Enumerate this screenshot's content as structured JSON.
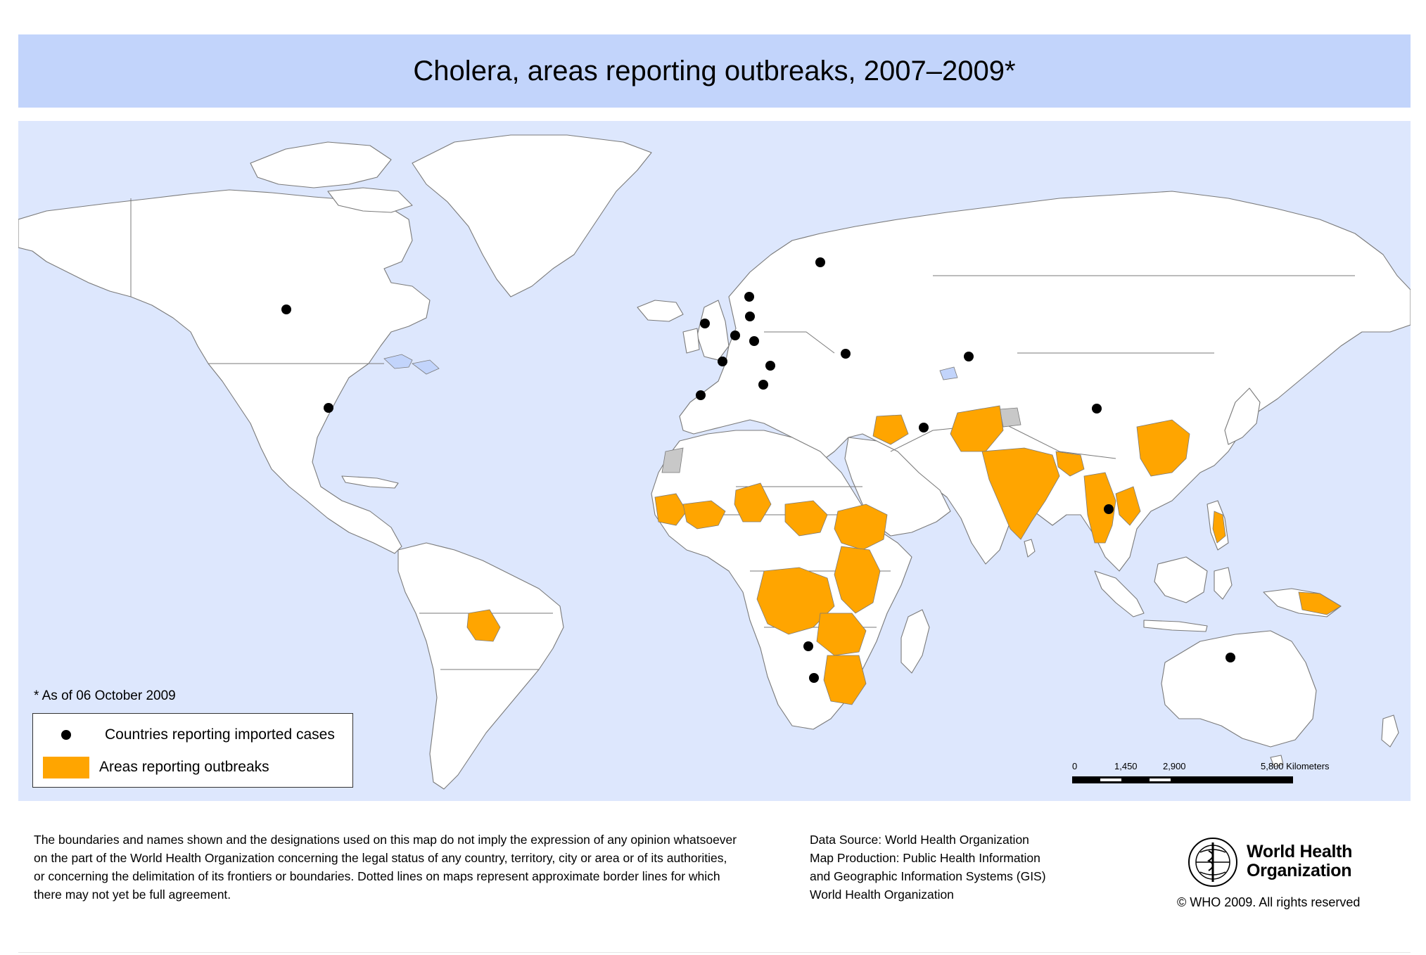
{
  "title": "Cholera, areas reporting outbreaks, 2007–2009*",
  "note": "* As of 06 October 2009",
  "legend": {
    "imported_label": "Countries reporting imported cases",
    "outbreak_label": "Areas reporting outbreaks"
  },
  "colors": {
    "background": "#ffffff",
    "title_bar": "#c2d4fb",
    "ocean": "#dde7fd",
    "land": "#ffffff",
    "border": "#7a7a7a",
    "outbreak": "#ffa500",
    "no_data": "#c8c8c8",
    "lakes": "#c2d4fb",
    "imported_dot": "#000000"
  },
  "scale": {
    "ticks": [
      "0",
      "1,450",
      "2,900",
      "5,800 Kilometers"
    ]
  },
  "disclaimer_lines": [
    "The boundaries and names shown and the designations used on this map do not imply the expression of any opinion whatsoever",
    "on the part of the World Health Organization concerning the legal status of any country, territory, city or area or of its authorities,",
    "or concerning the delimitation of its frontiers or boundaries.  Dotted lines on maps represent approximate border lines for which",
    "there may not yet be full agreement."
  ],
  "source_lines": [
    "Data Source: World Health Organization",
    "Map Production: Public Health Information",
    "and Geographic Information Systems (GIS)",
    "World Health Organization"
  ],
  "who": {
    "line1": "World Health",
    "line2": "Organization",
    "copyright": "© WHO 2009. All rights reserved",
    "logo_icon": "who-emblem-icon"
  },
  "map_data": {
    "imported_case_markers": 19,
    "outbreak_regions": [
      "Iraq",
      "Afghanistan",
      "Pakistan",
      "India",
      "Nepal",
      "Bangladesh",
      "Myanmar",
      "Thailand",
      "Cambodia",
      "Lao PDR",
      "Viet Nam",
      "China (south-east)",
      "Philippines",
      "Papua New Guinea",
      "Bolivia",
      "Senegal",
      "Guinea-Bissau",
      "Guinea",
      "Sierra Leone",
      "Liberia",
      "Cote d'Ivoire",
      "Ghana",
      "Togo",
      "Benin",
      "Nigeria",
      "Niger",
      "Cameroon",
      "Chad",
      "Sudan",
      "Ethiopia",
      "Somalia",
      "Kenya",
      "Uganda",
      "Rwanda",
      "Burundi",
      "United Republic of Tanzania",
      "Democratic Republic of the Congo",
      "Congo",
      "Angola",
      "Zambia",
      "Malawi",
      "Mozambique",
      "Zimbabwe",
      "South Africa (north-east)",
      "Namibia (north)",
      "Swaziland"
    ]
  }
}
